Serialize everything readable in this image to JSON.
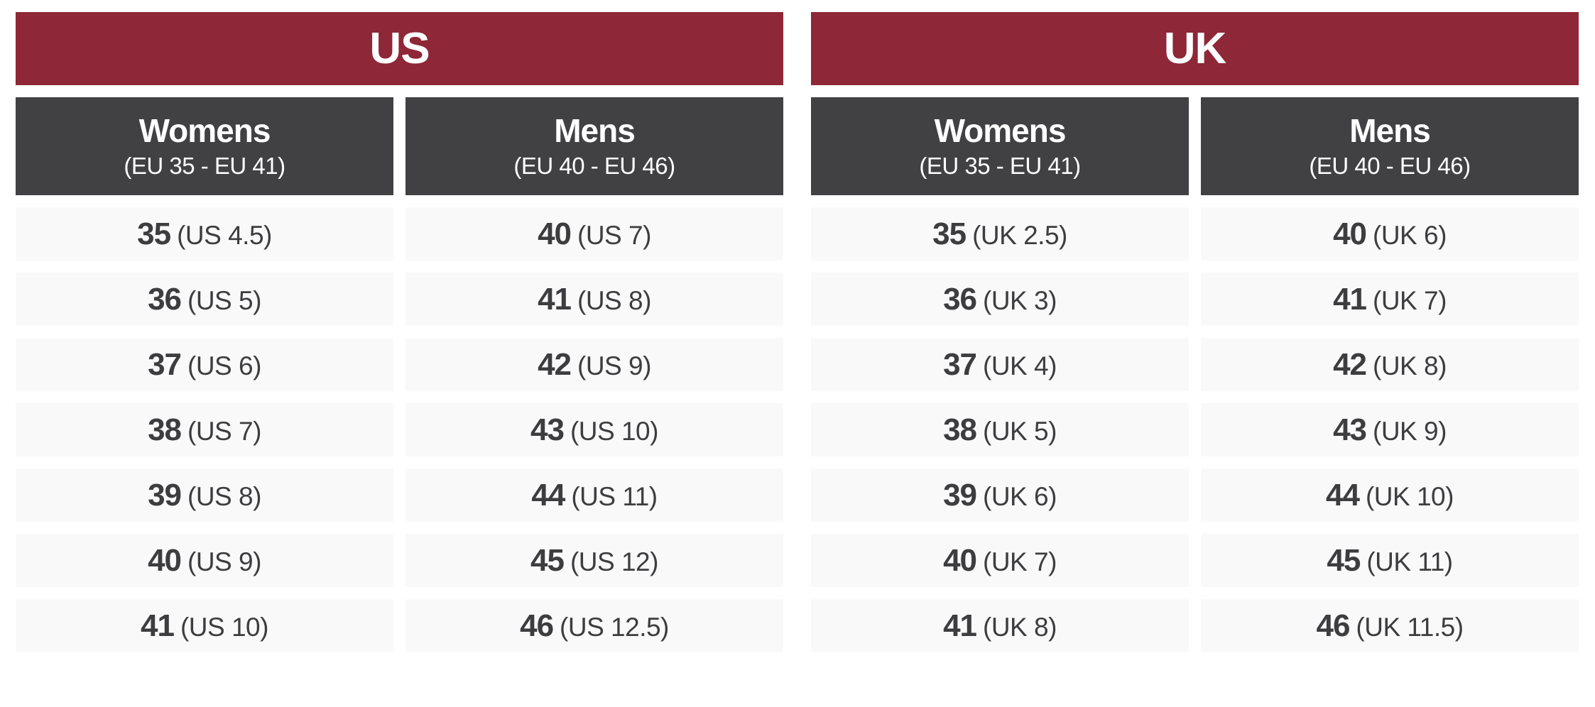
{
  "colors": {
    "header_red": "#8e2737",
    "header_dark": "#414144",
    "row_bg": "#f9f9f9",
    "header_text": "#ffffff",
    "cell_text": "#3d3d40",
    "page_bg": "#ffffff"
  },
  "tables": [
    {
      "title": "US",
      "columns": [
        {
          "name": "Womens",
          "range": "(EU 35 - EU 41)",
          "cells": [
            {
              "eu": "35",
              "conv": "(US 4.5)"
            },
            {
              "eu": "36",
              "conv": "(US 5)"
            },
            {
              "eu": "37",
              "conv": "(US 6)"
            },
            {
              "eu": "38",
              "conv": "(US 7)"
            },
            {
              "eu": "39",
              "conv": "(US 8)"
            },
            {
              "eu": "40",
              "conv": "(US 9)"
            },
            {
              "eu": "41",
              "conv": "(US 10)"
            }
          ]
        },
        {
          "name": "Mens",
          "range": "(EU 40 - EU 46)",
          "cells": [
            {
              "eu": "40",
              "conv": "(US 7)"
            },
            {
              "eu": "41",
              "conv": "(US 8)"
            },
            {
              "eu": "42",
              "conv": "(US 9)"
            },
            {
              "eu": "43",
              "conv": "(US 10)"
            },
            {
              "eu": "44",
              "conv": "(US 11)"
            },
            {
              "eu": "45",
              "conv": "(US 12)"
            },
            {
              "eu": "46",
              "conv": "(US 12.5)"
            }
          ]
        }
      ]
    },
    {
      "title": "UK",
      "columns": [
        {
          "name": "Womens",
          "range": "(EU 35 - EU 41)",
          "cells": [
            {
              "eu": "35",
              "conv": "(UK 2.5)"
            },
            {
              "eu": "36",
              "conv": "(UK 3)"
            },
            {
              "eu": "37",
              "conv": "(UK 4)"
            },
            {
              "eu": "38",
              "conv": "(UK 5)"
            },
            {
              "eu": "39",
              "conv": "(UK 6)"
            },
            {
              "eu": "40",
              "conv": "(UK 7)"
            },
            {
              "eu": "41",
              "conv": "(UK 8)"
            }
          ]
        },
        {
          "name": "Mens",
          "range": "(EU 40 - EU 46)",
          "cells": [
            {
              "eu": "40",
              "conv": "(UK 6)"
            },
            {
              "eu": "41",
              "conv": "(UK 7)"
            },
            {
              "eu": "42",
              "conv": "(UK 8)"
            },
            {
              "eu": "43",
              "conv": "(UK 9)"
            },
            {
              "eu": "44",
              "conv": "(UK 10)"
            },
            {
              "eu": "45",
              "conv": "(UK 11)"
            },
            {
              "eu": "46",
              "conv": "(UK 11.5)"
            }
          ]
        }
      ]
    }
  ],
  "chart_data": [
    {
      "type": "table",
      "title": "US",
      "columns": [
        "Womens (EU 35 - EU 41)",
        "Mens (EU 40 - EU 46)"
      ],
      "rows": [
        [
          "35 (US 4.5)",
          "40 (US 7)"
        ],
        [
          "36 (US 5)",
          "41 (US 8)"
        ],
        [
          "37 (US 6)",
          "42 (US 9)"
        ],
        [
          "38 (US 7)",
          "43 (US 10)"
        ],
        [
          "39 (US 8)",
          "44 (US 11)"
        ],
        [
          "40 (US 9)",
          "45 (US 12)"
        ],
        [
          "41 (US 10)",
          "46 (US 12.5)"
        ]
      ]
    },
    {
      "type": "table",
      "title": "UK",
      "columns": [
        "Womens (EU 35 - EU 41)",
        "Mens (EU 40 - EU 46)"
      ],
      "rows": [
        [
          "35 (UK 2.5)",
          "40 (UK 6)"
        ],
        [
          "36 (UK 3)",
          "41 (UK 7)"
        ],
        [
          "37 (UK 4)",
          "42 (UK 8)"
        ],
        [
          "38 (UK 5)",
          "43 (UK 9)"
        ],
        [
          "39 (UK 6)",
          "44 (UK 10)"
        ],
        [
          "40 (UK 7)",
          "45 (UK 11)"
        ],
        [
          "41 (UK 8)",
          "46 (UK 11.5)"
        ]
      ]
    }
  ]
}
